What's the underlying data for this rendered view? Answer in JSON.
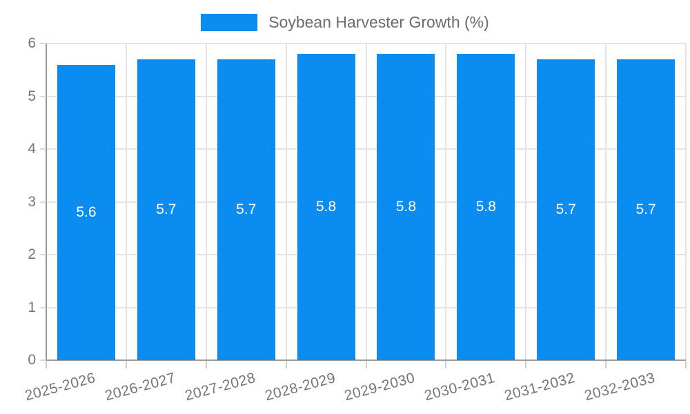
{
  "legend": {
    "label": "Soybean Harvester Growth (%)"
  },
  "colors": {
    "bar": "#0a8cf0",
    "bar_value_text": "#ffffff",
    "axis": "#9a9a9a",
    "grid": "#e4e4e4",
    "tick_text": "#757575",
    "legend_text": "#6b6b6b"
  },
  "chart_data": {
    "type": "bar",
    "title": "Soybean Harvester Growth (%)",
    "categories": [
      "2025-2026",
      "2026-2027",
      "2027-2028",
      "2028-2029",
      "2029-2030",
      "2030-2031",
      "2031-2032",
      "2032-2033"
    ],
    "series": [
      {
        "name": "Soybean Harvester Growth (%)",
        "values": [
          5.6,
          5.7,
          5.7,
          5.8,
          5.8,
          5.8,
          5.7,
          5.7
        ]
      }
    ],
    "bar_value_labels": [
      "5.6",
      "5.7",
      "5.7",
      "5.8",
      "5.8",
      "5.8",
      "5.7",
      "5.7"
    ],
    "xlabel": "",
    "ylabel": "",
    "ylim": [
      0,
      6
    ],
    "yticks": [
      0,
      1,
      2,
      3,
      4,
      5,
      6
    ],
    "grid": true,
    "legend_position": "top-center",
    "x_label_rotation_deg": -15
  }
}
